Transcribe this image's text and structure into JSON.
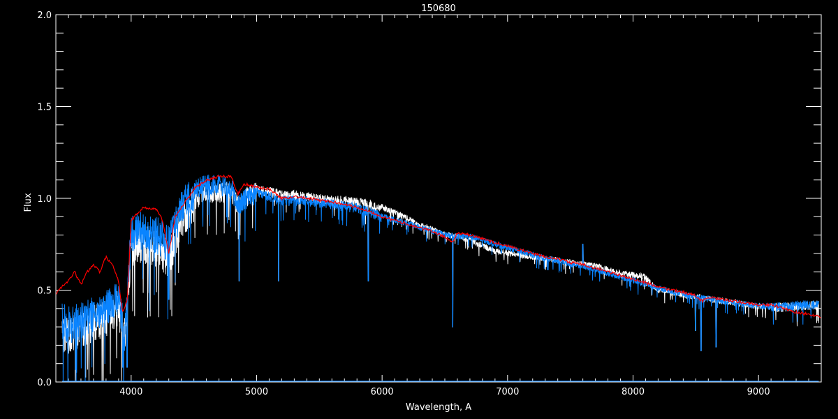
{
  "chart_data": {
    "type": "line",
    "title": "150680",
    "xlabel": "Wavelength, A",
    "ylabel": "Flux",
    "xlim": [
      3400,
      9500
    ],
    "ylim": [
      0.0,
      2.0
    ],
    "x_ticks": [
      "4000",
      "5000",
      "6000",
      "7000",
      "8000",
      "9000"
    ],
    "y_ticks": [
      "0.0",
      "0.5",
      "1.0",
      "1.5",
      "2.0"
    ],
    "grid": false,
    "legend": "none",
    "series": [
      {
        "color": "#ffffff",
        "x": [
          3450,
          3500,
          3600,
          3700,
          3800,
          3900,
          3950,
          4000,
          4100,
          4200,
          4300,
          4400,
          4500,
          4600,
          4700,
          4800,
          4850,
          4900,
          5000,
          5100,
          5200,
          5300,
          5400,
          5500,
          5600,
          5700,
          5800,
          5900,
          6000,
          6100,
          6200,
          6300,
          6400,
          6500,
          6600,
          6700,
          6800,
          6900,
          7000,
          7100,
          7200,
          7300,
          7400,
          7500,
          7600,
          7700,
          7800,
          7900,
          8000,
          8100,
          8150,
          8200,
          8300,
          8400,
          8500,
          8600,
          8700,
          8800,
          8900,
          9000,
          9100,
          9200,
          9300,
          9400,
          9480
        ],
        "y": [
          0.33,
          0.3,
          0.33,
          0.37,
          0.4,
          0.45,
          0.3,
          0.78,
          0.8,
          0.78,
          0.72,
          0.93,
          1.02,
          1.05,
          1.06,
          1.06,
          0.98,
          1.03,
          1.06,
          1.05,
          1.03,
          1.03,
          1.02,
          1.01,
          1.0,
          1.0,
          0.99,
          0.98,
          0.96,
          0.93,
          0.9,
          0.86,
          0.84,
          0.81,
          0.8,
          0.78,
          0.75,
          0.72,
          0.71,
          0.7,
          0.69,
          0.68,
          0.67,
          0.66,
          0.65,
          0.64,
          0.62,
          0.6,
          0.59,
          0.58,
          0.54,
          0.51,
          0.5,
          0.48,
          0.47,
          0.46,
          0.45,
          0.44,
          0.43,
          0.42,
          0.42,
          0.42,
          0.42,
          0.43,
          0.43
        ]
      },
      {
        "color": "#0a84ff",
        "x": [
          3450,
          3500,
          3600,
          3700,
          3800,
          3900,
          3950,
          4000,
          4100,
          4200,
          4300,
          4400,
          4500,
          4600,
          4700,
          4800,
          4850,
          4900,
          5000,
          5100,
          5200,
          5300,
          5400,
          5500,
          5600,
          5700,
          5800,
          5900,
          6000,
          6100,
          6200,
          6300,
          6400,
          6500,
          6600,
          6700,
          6800,
          6900,
          7000,
          7100,
          7200,
          7300,
          7400,
          7500,
          7600,
          7700,
          7800,
          7900,
          8000,
          8100,
          8200,
          8300,
          8400,
          8500,
          8600,
          8700,
          8800,
          8900,
          9000,
          9100,
          9200,
          9300,
          9400,
          9480
        ],
        "y": [
          0.38,
          0.36,
          0.38,
          0.42,
          0.45,
          0.5,
          0.3,
          0.85,
          0.88,
          0.85,
          0.8,
          1.0,
          1.08,
          1.1,
          1.1,
          1.08,
          0.98,
          1.02,
          1.05,
          1.02,
          1.0,
          1.0,
          1.0,
          0.99,
          0.98,
          0.97,
          0.96,
          0.94,
          0.91,
          0.89,
          0.87,
          0.85,
          0.83,
          0.81,
          0.8,
          0.8,
          0.78,
          0.76,
          0.74,
          0.72,
          0.7,
          0.68,
          0.67,
          0.65,
          0.64,
          0.62,
          0.6,
          0.58,
          0.56,
          0.54,
          0.52,
          0.5,
          0.49,
          0.47,
          0.46,
          0.45,
          0.44,
          0.43,
          0.42,
          0.42,
          0.42,
          0.43,
          0.43,
          0.43
        ]
      },
      {
        "color": "#ff0000",
        "x": [
          3400,
          3450,
          3500,
          3550,
          3600,
          3650,
          3700,
          3750,
          3800,
          3850,
          3900,
          3930,
          3970,
          4000,
          4050,
          4100,
          4200,
          4250,
          4300,
          4350,
          4400,
          4500,
          4600,
          4700,
          4800,
          4850,
          4900,
          5000,
          5100,
          5200,
          5300,
          5400,
          5500,
          5600,
          5700,
          5800,
          5900,
          6000,
          6100,
          6200,
          6300,
          6400,
          6500,
          6560,
          6600,
          6700,
          6800,
          6900,
          7000,
          7100,
          7200,
          7300,
          7400,
          7500,
          7600,
          7700,
          7800,
          7900,
          8000,
          8100,
          8200,
          8300,
          8400,
          8500,
          8550,
          8600,
          8700,
          8800,
          8900,
          9000,
          9100,
          9200,
          9300,
          9400,
          9500
        ],
        "y": [
          0.48,
          0.52,
          0.55,
          0.6,
          0.53,
          0.6,
          0.64,
          0.6,
          0.68,
          0.64,
          0.55,
          0.38,
          0.45,
          0.88,
          0.92,
          0.95,
          0.94,
          0.88,
          0.7,
          0.9,
          0.95,
          1.05,
          1.1,
          1.12,
          1.12,
          1.02,
          1.08,
          1.06,
          1.05,
          1.0,
          1.01,
          1.0,
          0.99,
          0.98,
          0.97,
          0.95,
          0.93,
          0.9,
          0.88,
          0.86,
          0.84,
          0.82,
          0.79,
          0.76,
          0.81,
          0.8,
          0.78,
          0.76,
          0.74,
          0.72,
          0.7,
          0.68,
          0.67,
          0.65,
          0.64,
          0.62,
          0.6,
          0.58,
          0.56,
          0.54,
          0.52,
          0.5,
          0.49,
          0.47,
          0.44,
          0.46,
          0.45,
          0.44,
          0.43,
          0.42,
          0.42,
          0.4,
          0.38,
          0.37,
          0.35
        ]
      }
    ],
    "absorption_features": {
      "x": [
        3934,
        3968,
        4300,
        4861,
        5175,
        5890,
        6563,
        7600,
        8498,
        8542,
        8662
      ],
      "y": [
        0.08,
        0.08,
        0.45,
        0.55,
        0.55,
        0.55,
        0.3,
        0.75,
        0.28,
        0.17,
        0.19
      ]
    }
  }
}
